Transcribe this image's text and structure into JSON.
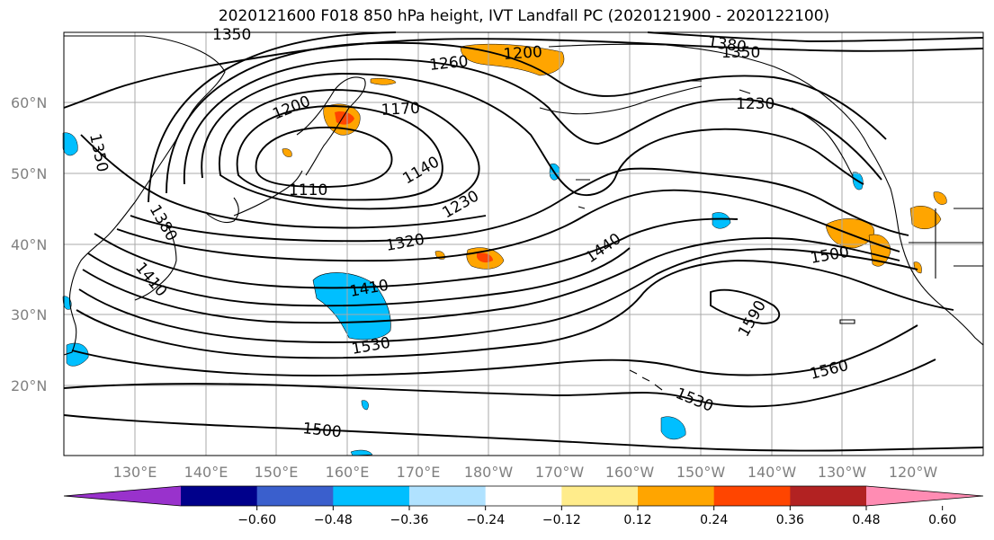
{
  "title": "2020121600 F018 850 hPa height, IVT Landfall PC (2020121900 - 2020122100)",
  "lat_labels": [
    "60°N",
    "50°N",
    "40°N",
    "30°N",
    "20°N"
  ],
  "lon_labels": [
    "130°E",
    "140°E",
    "150°E",
    "160°E",
    "170°E",
    "180°W",
    "170°W",
    "160°W",
    "150°W",
    "140°W",
    "130°W",
    "120°W"
  ],
  "contour_labels": [
    "1350",
    "1380",
    "1350",
    "1260",
    "1200",
    "1230",
    "1170",
    "1200",
    "1140",
    "1110",
    "1350",
    "1380",
    "1230",
    "1320",
    "1410",
    "1440",
    "1500",
    "1530",
    "1590",
    "1560",
    "1530",
    "1500",
    "1410"
  ],
  "colorbar": {
    "ticks": [
      "−0.60",
      "−0.48",
      "−0.36",
      "−0.24",
      "−0.12",
      "0.12",
      "0.24",
      "0.36",
      "0.48",
      "0.60"
    ],
    "colors": [
      "#9932cc",
      "#00008b",
      "#3a5fcd",
      "#00bfff",
      "#b0e2ff",
      "#ffffff",
      "#ffec8b",
      "#ffa500",
      "#ff4500",
      "#b22222",
      "#ff8cb3"
    ]
  },
  "shading_colors": {
    "negative": "#00bfff",
    "positive": "#ffa500",
    "strong_positive": "#ff4500"
  }
}
